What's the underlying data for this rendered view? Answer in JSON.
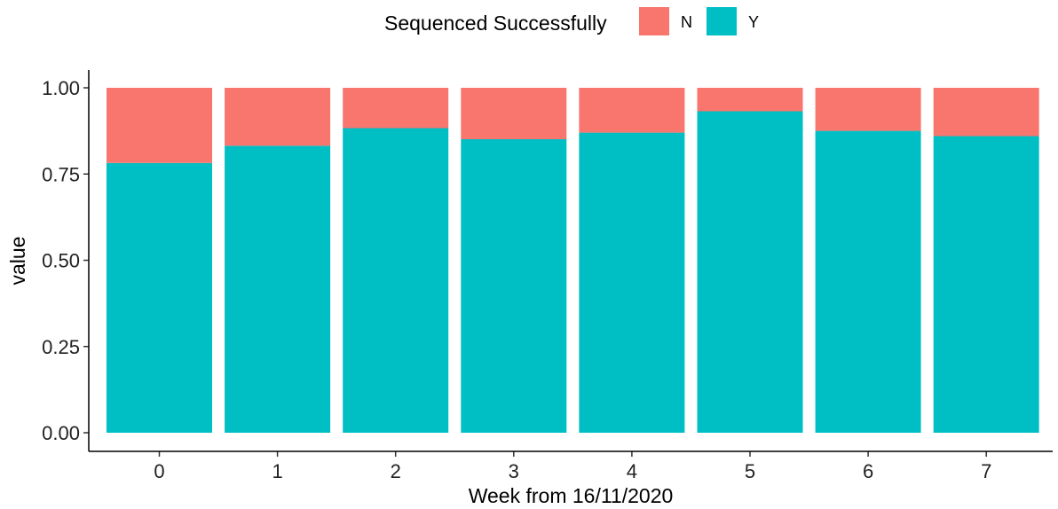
{
  "chart_data": {
    "type": "bar",
    "stacked": true,
    "categories": [
      "0",
      "1",
      "2",
      "3",
      "4",
      "5",
      "6",
      "7"
    ],
    "series": [
      {
        "name": "Y",
        "color": "#00BFC4",
        "values": [
          0.782,
          0.832,
          0.883,
          0.851,
          0.87,
          0.932,
          0.875,
          0.86
        ]
      },
      {
        "name": "N",
        "color": "#F8766D",
        "values": [
          0.218,
          0.168,
          0.117,
          0.149,
          0.13,
          0.068,
          0.125,
          0.14
        ]
      }
    ],
    "legend": {
      "title": "Sequenced Successfully",
      "position": "top",
      "entries": [
        {
          "label": "N",
          "color": "#F8766D"
        },
        {
          "label": "Y",
          "color": "#00BFC4"
        }
      ]
    },
    "xlabel": "Week from 16/11/2020",
    "ylabel": "value",
    "ylim": [
      0,
      1
    ],
    "yticks": [
      "0.00",
      "0.25",
      "0.50",
      "0.75",
      "1.00"
    ],
    "grid": false
  }
}
